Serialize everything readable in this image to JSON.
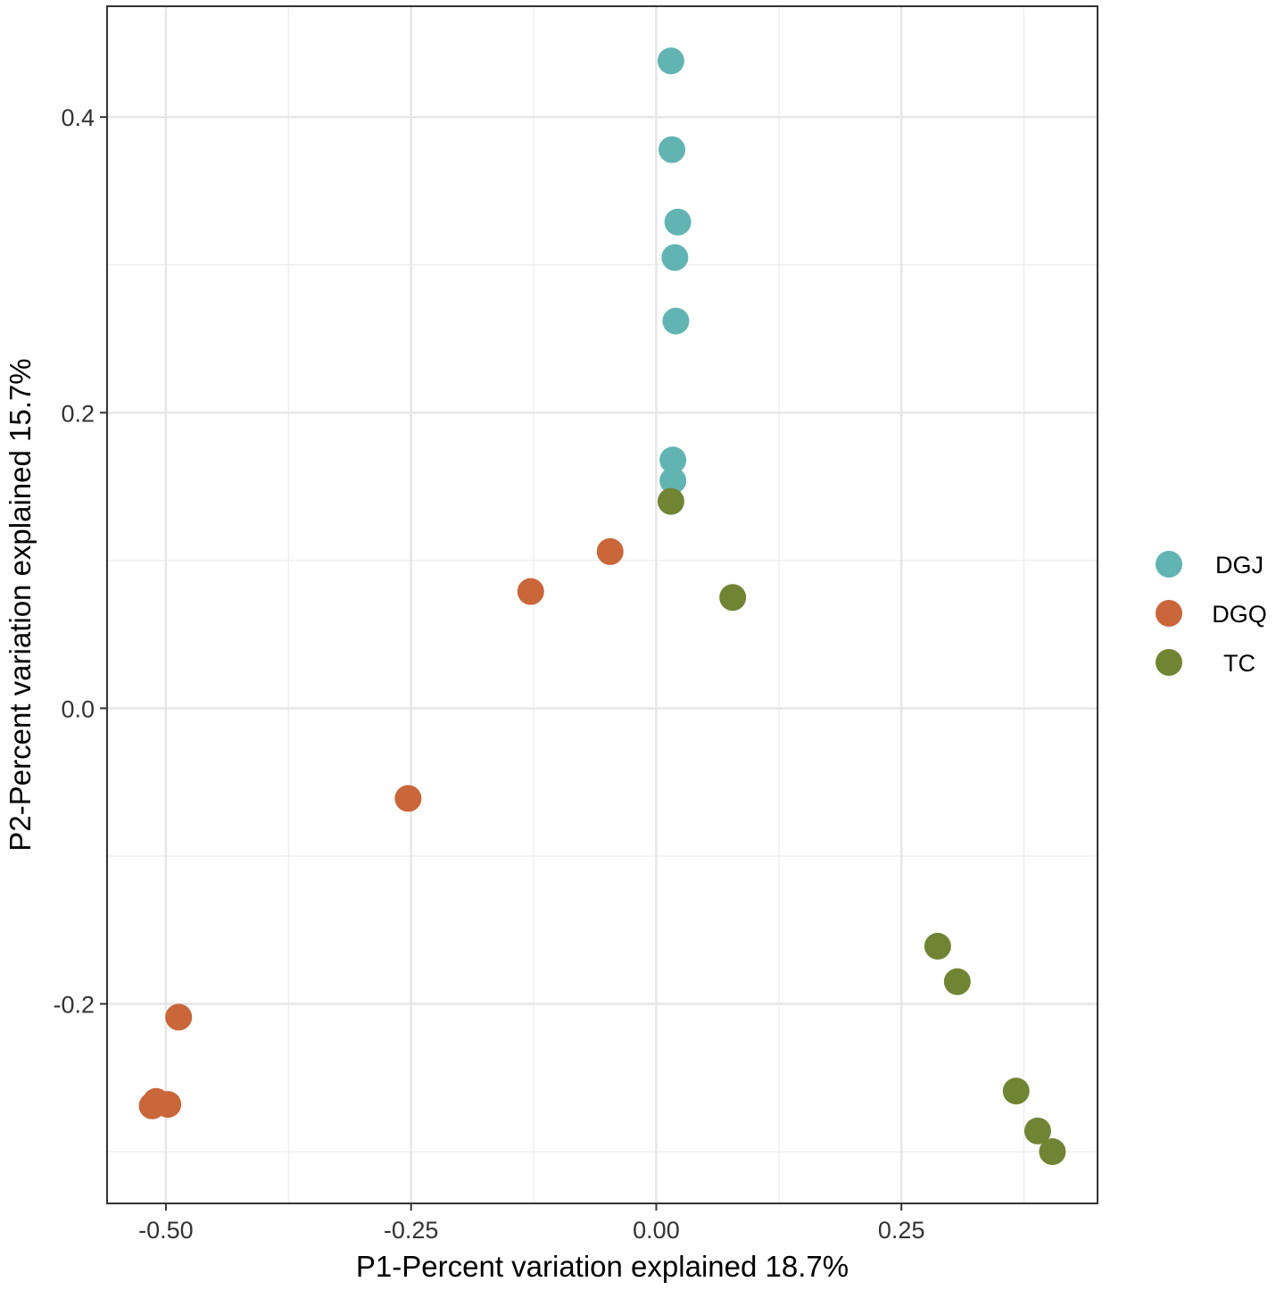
{
  "chart_data": {
    "type": "scatter",
    "title": "",
    "xlabel": "P1-Percent variation explained 18.7%",
    "ylabel": "P2-Percent variation explained 15.7%",
    "xlim": [
      -0.56,
      0.45
    ],
    "ylim": [
      -0.335,
      0.475
    ],
    "xticks": [
      -0.5,
      -0.25,
      0.0,
      0.25
    ],
    "xtick_labels": [
      "-0.50",
      "-0.25",
      "0.00",
      "0.25"
    ],
    "xminor": [
      -0.375,
      -0.125,
      0.125,
      0.375
    ],
    "yticks": [
      -0.2,
      0.0,
      0.2,
      0.4
    ],
    "ytick_labels": [
      "-0.2",
      "0.0",
      "0.2",
      "0.4"
    ],
    "yminor": [
      -0.3,
      -0.1,
      0.1,
      0.3
    ],
    "grid": true,
    "legend_position": "right",
    "series": [
      {
        "name": "DGJ",
        "color": "#62b4b3",
        "points": [
          {
            "x": 0.015,
            "y": 0.438
          },
          {
            "x": 0.016,
            "y": 0.378
          },
          {
            "x": 0.022,
            "y": 0.329
          },
          {
            "x": 0.019,
            "y": 0.305
          },
          {
            "x": 0.02,
            "y": 0.262
          },
          {
            "x": 0.017,
            "y": 0.168
          },
          {
            "x": 0.017,
            "y": 0.154
          }
        ]
      },
      {
        "name": "DGQ",
        "color": "#c9663a",
        "points": [
          {
            "x": -0.047,
            "y": 0.106
          },
          {
            "x": -0.128,
            "y": 0.079
          },
          {
            "x": -0.253,
            "y": -0.061
          },
          {
            "x": -0.487,
            "y": -0.209
          },
          {
            "x": -0.51,
            "y": -0.266
          },
          {
            "x": -0.498,
            "y": -0.268
          },
          {
            "x": -0.514,
            "y": -0.269
          }
        ]
      },
      {
        "name": "TC",
        "color": "#718434",
        "points": [
          {
            "x": 0.015,
            "y": 0.14
          },
          {
            "x": 0.078,
            "y": 0.075
          },
          {
            "x": 0.287,
            "y": -0.161
          },
          {
            "x": 0.307,
            "y": -0.185
          },
          {
            "x": 0.367,
            "y": -0.259
          },
          {
            "x": 0.389,
            "y": -0.286
          },
          {
            "x": 0.404,
            "y": -0.3
          }
        ]
      }
    ]
  }
}
